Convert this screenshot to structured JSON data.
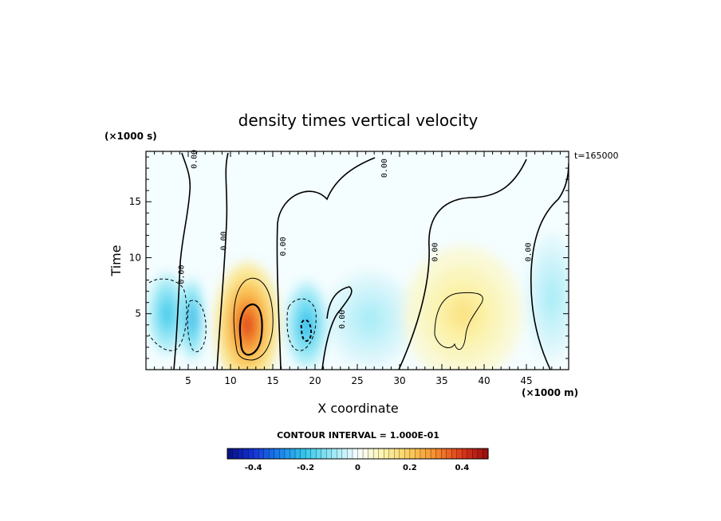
{
  "chart_data": {
    "type": "heatmap",
    "title": "density times vertical velocity",
    "xlabel": "X coordinate",
    "ylabel": "Time",
    "x_unit": "(×1000 m)",
    "y_unit": "(×1000 s)",
    "time_stamp": "t=165000",
    "xlim": [
      0,
      50
    ],
    "ylim": [
      0,
      19.5
    ],
    "x_ticks": [
      "5",
      "10",
      "15",
      "20",
      "25",
      "30",
      "35",
      "40",
      "45"
    ],
    "y_ticks": [
      "5",
      "10",
      "15"
    ],
    "contour_interval_text": "CONTOUR INTERVAL = 1.000E-01",
    "contour_labels": [
      "0.00",
      "0.00",
      "0.00",
      "0.00",
      "0.00",
      "0.00",
      "0.00",
      "0.00"
    ],
    "colorbar": {
      "range": [
        -0.5,
        0.5
      ],
      "tick_labels": [
        "-0.4",
        "-0.2",
        "0",
        "0.2",
        "0.4"
      ],
      "tick_values": [
        -0.4,
        -0.2,
        0,
        0.2,
        0.4
      ]
    },
    "features": [
      {
        "x": 2.5,
        "y": 5.0,
        "value": -0.2
      },
      {
        "x": 5.5,
        "y": 4.5,
        "value": -0.25
      },
      {
        "x": 12.0,
        "y": 4.0,
        "value": 0.38
      },
      {
        "x": 19.0,
        "y": 4.0,
        "value": -0.22
      },
      {
        "x": 26.5,
        "y": 4.5,
        "value": -0.08
      },
      {
        "x": 37.5,
        "y": 5.0,
        "value": 0.14
      },
      {
        "x": 48.0,
        "y": 6.5,
        "value": -0.08
      }
    ]
  }
}
